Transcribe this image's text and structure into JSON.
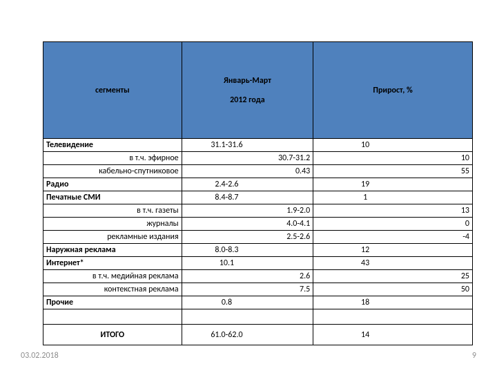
{
  "header": {
    "segments": "сегменты",
    "period_line1": "Январь-Март",
    "period_line2": "2012 года",
    "growth": "Прирост, %"
  },
  "rows": [
    {
      "type": "main",
      "label": "Телевидение",
      "value": "31.1-31.6",
      "growth": "10"
    },
    {
      "type": "sub",
      "label": "в т.ч. эфирное",
      "value": "30.7-31.2",
      "growth": "10"
    },
    {
      "type": "sub",
      "label": "кабельно-спутниковое",
      "value": "0.43",
      "growth": "55"
    },
    {
      "type": "main",
      "label": "Радио",
      "value": "2.4-2.6",
      "growth": "19"
    },
    {
      "type": "main",
      "label": "Печатные СМИ",
      "value": "8.4-8.7",
      "growth": "1"
    },
    {
      "type": "sub",
      "label": "в т.ч. газеты",
      "value": "1.9-2.0",
      "growth": "13"
    },
    {
      "type": "sub",
      "label": "журналы",
      "value": "4.0-4.1",
      "growth": "0"
    },
    {
      "type": "sub",
      "label": "рекламные издания",
      "value": "2.5-2.6",
      "growth": "-4"
    },
    {
      "type": "main",
      "label": "Наружная реклама",
      "value": "8.0-8.3",
      "growth": "12"
    },
    {
      "type": "main",
      "label": "Интернет*",
      "value": "10.1",
      "growth": "43"
    },
    {
      "type": "sub",
      "label": "в т.ч. медийная реклама",
      "value": "2.6",
      "growth": "25"
    },
    {
      "type": "sub",
      "label": "контекстная реклама",
      "value": "7.5",
      "growth": "50"
    },
    {
      "type": "main",
      "label": "Прочие",
      "value": "0.8",
      "growth": "18"
    }
  ],
  "total": {
    "label": "ИТОГО",
    "value": "61.0-62.0",
    "growth": "14"
  },
  "footer": {
    "date": "03.02.2018",
    "page": "9"
  },
  "colors": {
    "header_bg": "#4f81bd",
    "footer_text": "#8d8d8d"
  }
}
